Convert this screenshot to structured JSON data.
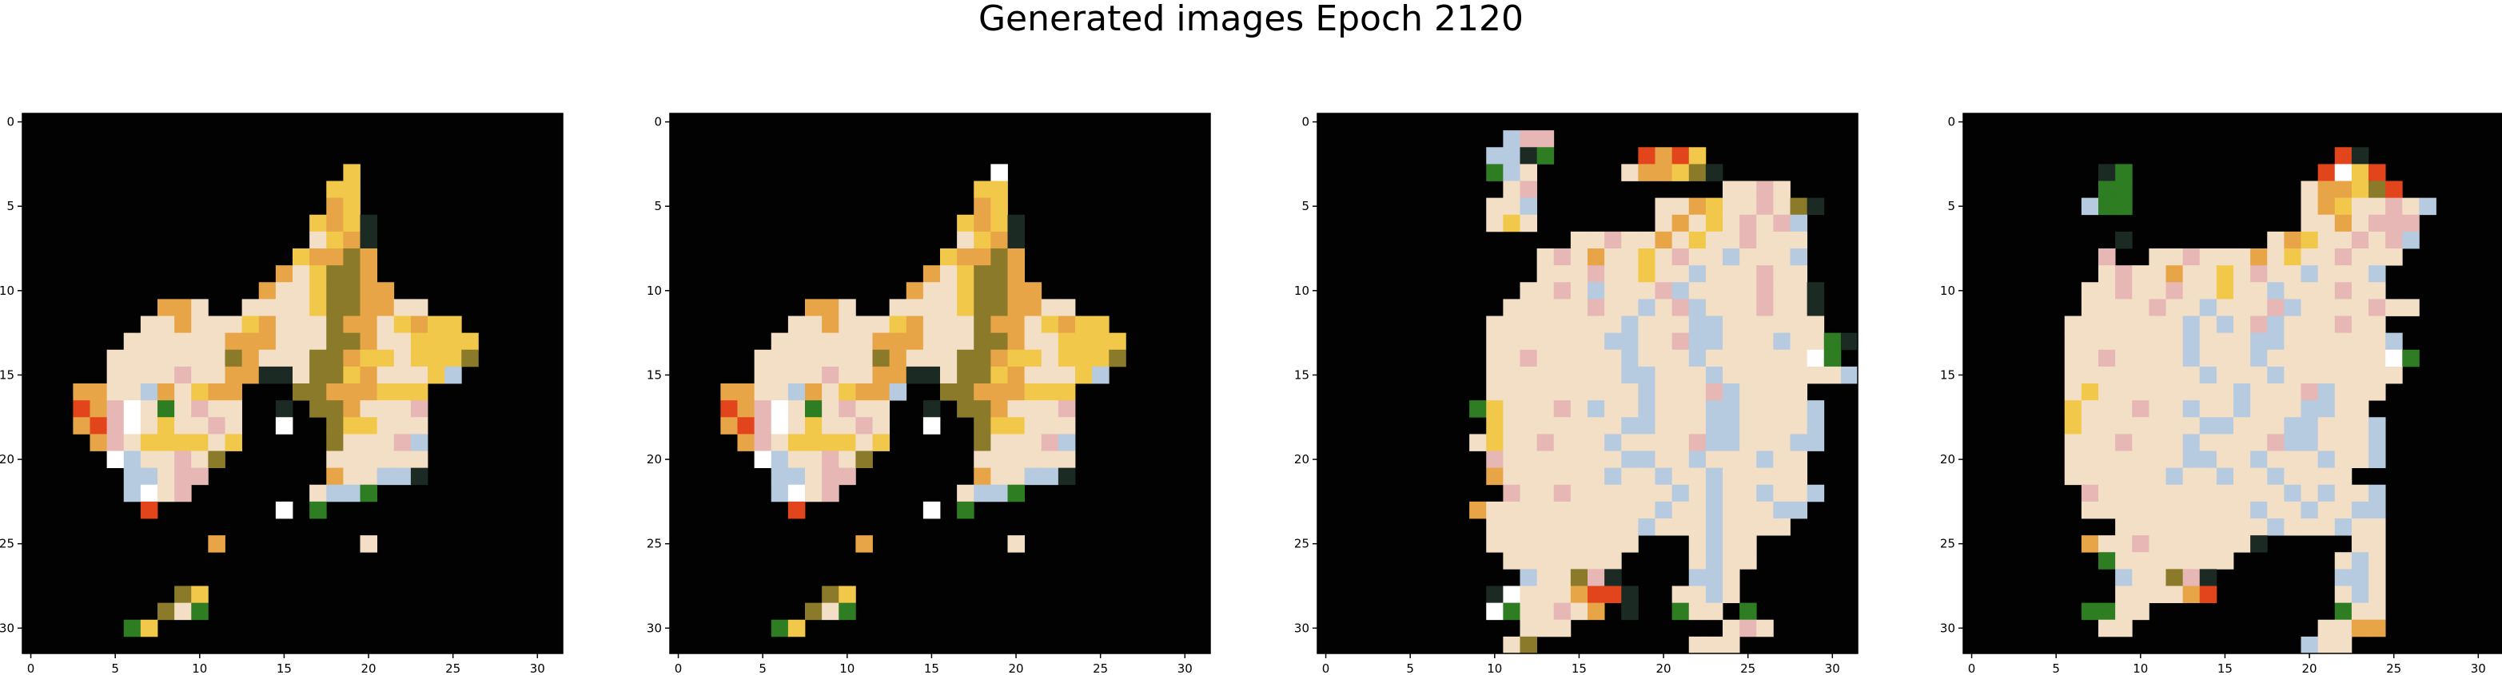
{
  "title": "Generated images Epoch 2120",
  "chart_data": [
    {
      "type": "heatmap",
      "title": "",
      "xlabel": "",
      "ylabel": "",
      "xlim": [
        -0.5,
        31.5
      ],
      "ylim": [
        31.5,
        -0.5
      ],
      "xticks": [
        0,
        5,
        10,
        15,
        20,
        25,
        30
      ],
      "yticks": [
        0,
        5,
        10,
        15,
        20,
        25,
        30
      ],
      "grid": false,
      "colors": {
        "background": "#020202",
        "cream": "#f3dfc6",
        "orange": "#e8a547",
        "olive": "#8a7a2a",
        "gold": "#f2c84b",
        "pink": "#e6b7b5",
        "blue": "#b6cbe0",
        "green": "#2f7d22"
      },
      "palette_note": "char map: . background, c cream, o orange, v olive, y gold, p pink, b blue, g green, w white, r red, k dark",
      "rows": [
        "................................",
        "................................",
        "................................",
        "...................y............",
        "..................yy............",
        "..................oy............",
        ".................yoyk...........",
        ".................cyok...........",
        "................yoovo...........",
        "...............ocyvvo...........",
        "..............occyvvoo..........",
        "........ooc..ccccyvvoocc........",
        ".......ccocccyocccvoocyoyy.......",
        "......ccccccooocccvvoccyyyy......",
        ".....cccccccvocccvvoyycyyyv......",
        ".....ccccpccookkcvvyocccyb.......",
        "...ooccbocyoo...vvoooyyy.........",
        "...ropwcgcpcc..k.vvocccp.........",
        "...orpwcyccpc..w..vyyccc.........",
        "....opcyyyycy.....vcccpb.........",
        ".....wbccpcv......cccccc.........",
        "......bbcpp.......occbbk.........",
        "......bwcp.......cbbg............",
        ".......r.......w.g...............",
        ".................................",
        "...........o........c............",
        "................................",
        "................................",
        ".........vy.....................",
        "........vcg.....................",
        "......gy........................",
        "................................"
      ]
    },
    {
      "type": "heatmap",
      "title": "",
      "xlabel": "",
      "ylabel": "",
      "xlim": [
        -0.5,
        31.5
      ],
      "ylim": [
        31.5,
        -0.5
      ],
      "xticks": [
        0,
        5,
        10,
        15,
        20,
        25,
        30
      ],
      "yticks": [
        0,
        5,
        10,
        15,
        20,
        25,
        30
      ],
      "grid": false,
      "colors": {
        "background": "#020202",
        "cream": "#f3dfc6",
        "orange": "#e8a547",
        "olive": "#8a7a2a",
        "gold": "#f2c84b",
        "pink": "#e6b7b5",
        "blue": "#b6cbe0",
        "green": "#2f7d22"
      },
      "palette_note": "char map: . background, c cream, o orange, v olive, y gold, p pink, b blue, g green, w white, r red, k dark",
      "rows": [
        "................................",
        "................................",
        "................................",
        "...................w............",
        "..................yy............",
        "..................oy............",
        ".................yoyk...........",
        ".................cyok...........",
        "................yoovo...........",
        "...............ocyvvo...........",
        "..............occyvvoo..........",
        "........ooc..ccccyvvoocc........",
        ".......ccocccyocccvoocyoyy.......",
        "......ccccccooocccvvoccyyyy......",
        ".....cccccccvocccvvoyycyyyv......",
        ".....ccccpccookkcvvyocccyb.......",
        "...ooccbocyoob..vvoooyyy.........",
        "...ropwcgcpcc..k.vvocccp.........",
        "...orpwcyccpc..w..vyyccc.........",
        "....opcyyyycy.....vcccpb.........",
        ".....wbccpcv......cccccc.........",
        "......bbcpp.......occbbk.........",
        "......bwcp.......cbbg............",
        ".......r.......w.g...............",
        ".................................",
        "...........o........c............",
        "................................",
        "................................",
        ".........vy.....................",
        "........vcg.....................",
        "......gy........................",
        "................................"
      ]
    },
    {
      "type": "heatmap",
      "title": "",
      "xlabel": "",
      "ylabel": "",
      "xlim": [
        -0.5,
        31.5
      ],
      "ylim": [
        31.5,
        -0.5
      ],
      "xticks": [
        0,
        5,
        10,
        15,
        20,
        25,
        30
      ],
      "yticks": [
        0,
        5,
        10,
        15,
        20,
        25,
        30
      ],
      "grid": false,
      "colors": {
        "background": "#020202",
        "cream": "#f3dfc6",
        "orange": "#e8a547",
        "olive": "#8a7a2a",
        "gold": "#f2c84b",
        "pink": "#e6b7b5",
        "blue": "#b6cbe0",
        "green": "#2f7d22"
      },
      "palette_note": "char map: . background, c cream, o orange, v olive, y gold, p pink, b blue, g green, w white, r red, k dark",
      "rows": [
        "................................",
        "...........bpp..................",
        "..........bbkg.....rory.........",
        "..........gbc.....cooyvk........",
        "...........cp...........ccpc....",
        "..........ccb.......ccoyccpcvk..",
        "..........cyc.......cocycpcpb...",
        "...............ccpccocyccpccc...",
        ".............cpcoccycpccbcccb...",
        ".............cccpccyccbcccpcc...",
        "............ccpcbcccpbccccpcck..",
        "...........cccccpccbcpbcccpcck..",
        "..........ccccccccbcccbbcccccc..",
        "..........cccccccbbccpbbcccbccgk",
        "..........ccpcccccbcccbccccccwg.",
        "..........ccccccccbbcccbcccccccb",
        "..........cccccccccbcccpbcccc...",
        ".........gycccpcbccbcccbbccccb..",
        "..........ycccccccbbcccbbccccb..",
        ".........cyccpcccbccccpbbcccbb..",
        "..........pcccccccbbccbcccbcc...",
        "..........occccccbccbccbccccc...",
        "...........pccpccccccbcbccbccb..",
        ".........occccccccccbccbcccbb...",
        "..........cccccccccbcccbcccc....",
        "..........ccccccccc...cbcc......",
        "...........ccccccc....cbcc......",
        "............bccvpk....bbc.......",
        "..........kwcccorrk..ccbc.......",
        "..........wgccpco.k..gcc.g......",
        "............ccc.........cpc.....",
        "...........cv.........ccc......."
      ]
    },
    {
      "type": "heatmap",
      "title": "",
      "xlabel": "",
      "ylabel": "",
      "xlim": [
        -0.5,
        31.5
      ],
      "ylim": [
        31.5,
        -0.5
      ],
      "xticks": [
        0,
        5,
        10,
        15,
        20,
        25,
        30
      ],
      "yticks": [
        0,
        5,
        10,
        15,
        20,
        25,
        30
      ],
      "grid": false,
      "colors": {
        "background": "#020202",
        "cream": "#f3dfc6",
        "orange": "#e8a547",
        "olive": "#8a7a2a",
        "gold": "#f2c84b",
        "pink": "#e6b7b5",
        "blue": "#b6cbe0",
        "green": "#2f7d22"
      },
      "palette_note": "char map: . background, c cream, o orange, v olive, y gold, p pink, b blue, g green, w white, r red, k dark",
      "rows": [
        "................................",
        "................................",
        "......................rk........",
        "........kg...........rwyr.......",
        "........gg..........cooyvr......",
        ".......bgg..........coyccpcb....",
        "....................ccocppp.....",
        ".........k........coyccpcpb.....",
        "........p..ccpcccocyccpccc......",
        "........cpccoccycpccbcccb.......",
        ".......ccpccpccyccbcccpcc.......",
        ".......ccccpccbcccpbccccpcc......",
        "......cccccccbcbcpbcccpcc.......",
        "......cccccccbcccbbccccccb......",
        "......ccpccccbcccbcccccccwg.....",
        "......ccccccccbcccbccccccc......",
        "......cyccccccccbcccpbccc.......",
        "......ycccpccbccbcccbbcc........",
        "......ycccccccbbcccbbcccb.......",
        "......cccpcccbccccpbbcccb.......",
        "......cccccccbbccbcccbccb.......",
        "......ccccccbccbccbcccc.........",
        ".......pcccccccccccbcbccb.......",
        ".......ccccccccccbccbccbb.......",
        ".........cccccccccbcccbcc.......",
        ".......occpcccccck.....cc.......",
        "........gccccccc......cbc.......",
        ".........bccvpk.......bbc.......",
        ".........ccccor.......cbc.......",
        ".......ggcc...........gcc.......",
        "........cc...........ccoo.......",
        "....................bcc........."
      ]
    }
  ]
}
